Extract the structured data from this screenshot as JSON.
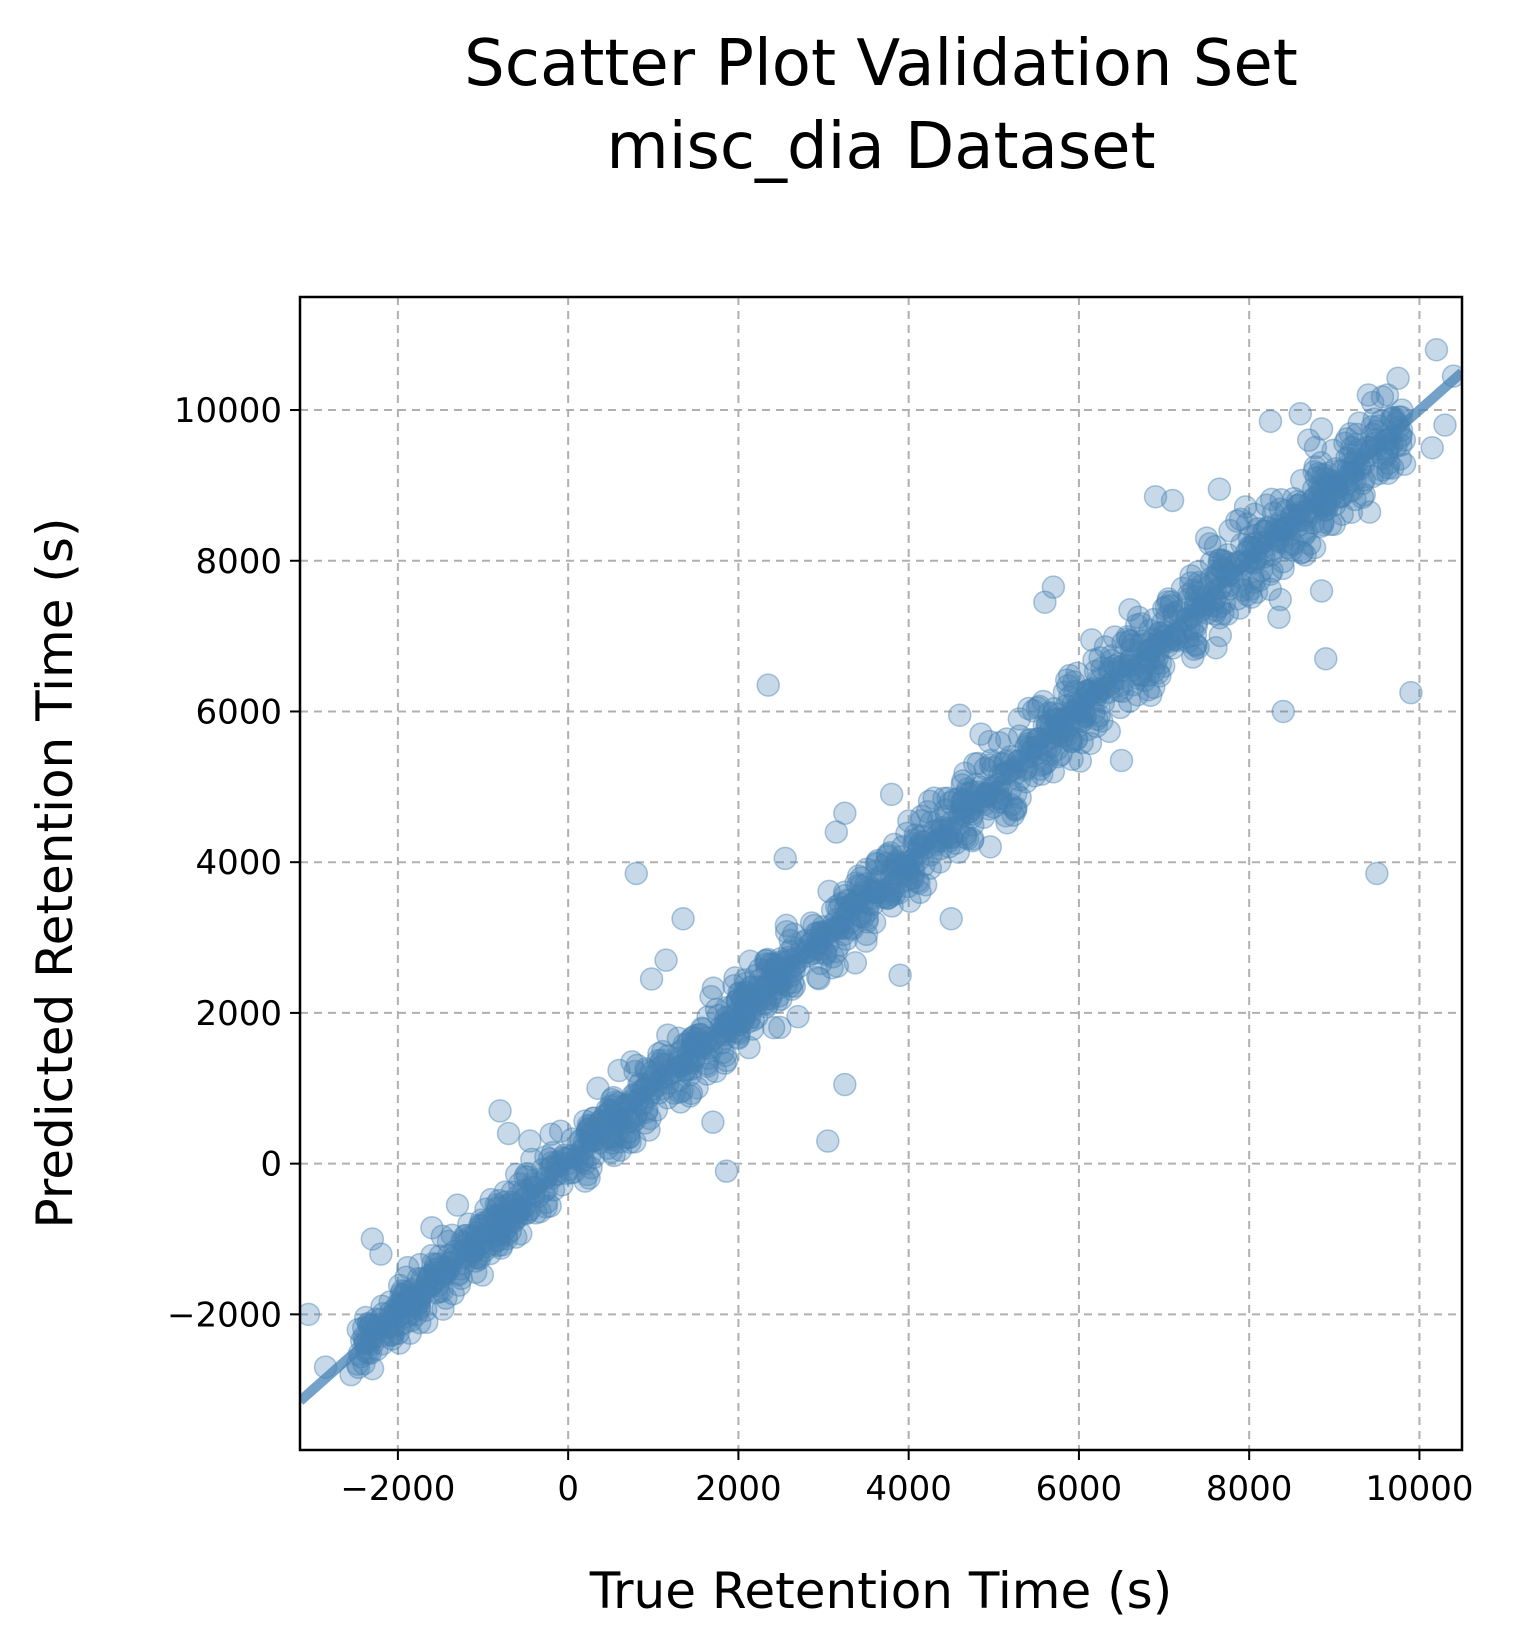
{
  "chart_data": {
    "type": "scatter",
    "title": "Scatter Plot Validation Set",
    "subtitle": "misc_dia Dataset",
    "xlabel": "True Retention Time (s)",
    "ylabel": "Predicted Retention Time (s)",
    "xlim": [
      -3150,
      10500
    ],
    "ylim": [
      -3800,
      11500
    ],
    "xticks": [
      -2000,
      0,
      2000,
      4000,
      6000,
      8000,
      10000
    ],
    "xtick_labels": [
      "−2000",
      "0",
      "2000",
      "4000",
      "6000",
      "8000",
      "10000"
    ],
    "yticks": [
      -2000,
      0,
      2000,
      4000,
      6000,
      8000,
      10000
    ],
    "ytick_labels": [
      "−2000",
      "0",
      "2000",
      "4000",
      "6000",
      "8000",
      "10000"
    ],
    "grid": true,
    "legend": "none",
    "colors": {
      "points": "#4682b4",
      "fit_line": "#4682b4"
    },
    "fit_line": {
      "slope": 1.0,
      "intercept": 0,
      "x_range": [
        -3150,
        10500
      ]
    },
    "trend_band": {
      "x_from": -2500,
      "x_to": 9800,
      "slope": 1.0,
      "intercept": 0,
      "spread": 520,
      "n_points": 1400
    },
    "series": [
      {
        "x": [
          -2400,
          -2250,
          -2300,
          -2100,
          -1900,
          -1750,
          -1600,
          -1400,
          -1200,
          -1000,
          -800,
          -600,
          -400,
          -200,
          0,
          200,
          400,
          600,
          800,
          1000,
          1200,
          1400,
          1600,
          1800,
          2000,
          2200,
          2400,
          2600,
          2800,
          3000,
          3200,
          3400,
          3600,
          3800,
          4000,
          4200,
          4400,
          4600,
          4800,
          5000,
          5200,
          5400,
          5600,
          5800,
          6000,
          6200,
          6400,
          6600,
          6800,
          7000,
          7200,
          7400,
          7600,
          7800,
          8000,
          8200,
          8400,
          8600,
          8800,
          9000,
          9200,
          9400,
          9600,
          2350,
          800,
          1350,
          3250,
          3150,
          3800,
          2550,
          980,
          1150,
          1860,
          3050,
          3250,
          4950,
          5600,
          5700,
          6900,
          7100,
          8400,
          8900,
          9500,
          9900,
          4600,
          4850,
          4500,
          3900,
          1700,
          1850,
          2450,
          -1600,
          -2300,
          -2200,
          -3050,
          -2850,
          -2550,
          -800,
          -700,
          -1300,
          -450,
          750,
          350,
          10200,
          10400,
          10300,
          10150,
          9400,
          9450,
          8250,
          8600,
          8850,
          8700,
          6150,
          6600,
          6700,
          7500,
          7650,
          7900,
          7700,
          8850,
          8350,
          7400,
          6500,
          5700,
          3100,
          2700,
          300,
          -950,
          -200,
          2000,
          1500,
          4300,
          5200,
          5300,
          4200,
          3600
        ],
        "y": [
          -2300,
          -2200,
          -2400,
          -2100,
          -1900,
          -1800,
          -1600,
          -1400,
          -1250,
          -1000,
          -850,
          -600,
          -420,
          -200,
          0,
          220,
          420,
          620,
          820,
          1000,
          1180,
          1420,
          1600,
          1820,
          2000,
          2180,
          2400,
          2620,
          2800,
          3000,
          3180,
          3400,
          3620,
          3800,
          4000,
          4200,
          4420,
          4600,
          4800,
          5000,
          5220,
          5400,
          5600,
          5800,
          6000,
          6180,
          6400,
          6620,
          6800,
          7000,
          7200,
          7380,
          7600,
          7800,
          8000,
          8200,
          8400,
          8600,
          8800,
          9000,
          9180,
          9400,
          9600,
          6350,
          3850,
          3250,
          1050,
          4400,
          4900,
          4050,
          2450,
          2700,
          -100,
          300,
          4650,
          5600,
          7450,
          7650,
          8850,
          8800,
          6000,
          6700,
          3850,
          6250,
          5950,
          5700,
          3250,
          2500,
          550,
          1850,
          2150,
          -850,
          -1000,
          -1200,
          -2000,
          -2700,
          -2800,
          700,
          400,
          -550,
          300,
          1350,
          1000,
          10800,
          10450,
          9800,
          9500,
          10200,
          10100,
          9850,
          9950,
          9750,
          9600,
          6950,
          7350,
          7250,
          8300,
          8950,
          8550,
          8000,
          7600,
          7250,
          6850,
          5350,
          5200,
          2600,
          1950,
          600,
          -1100,
          -50,
          1750,
          1700,
          4850,
          5400,
          5900,
          3700,
          3200
        ]
      }
    ]
  }
}
